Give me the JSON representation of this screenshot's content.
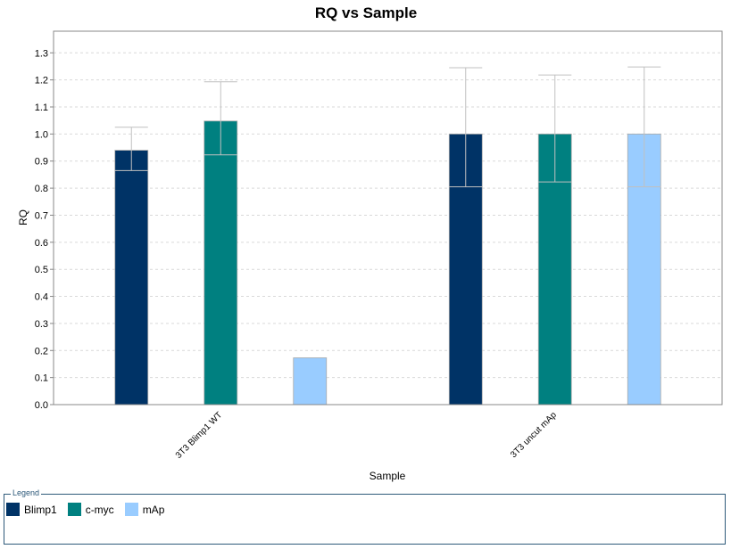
{
  "chart_data": {
    "type": "bar",
    "title": "RQ vs Sample",
    "xlabel": "Sample",
    "ylabel": "RQ",
    "categories": [
      "3T3 Blimp1 WT",
      "3T3 uncut mAp"
    ],
    "ylim": [
      0,
      1.38
    ],
    "yticks": [
      0.0,
      0.1,
      0.2,
      0.3,
      0.4,
      0.5,
      0.6,
      0.7,
      0.8,
      0.9,
      1.0,
      1.1,
      1.2,
      1.3
    ],
    "grid": true,
    "legend_position": "bottom",
    "legend_title": "Legend",
    "series": [
      {
        "name": "Blimp1",
        "color": "#003366",
        "values": [
          0.94,
          1.0
        ],
        "err_low": [
          0.865,
          0.805
        ],
        "err_high": [
          1.025,
          1.245
        ]
      },
      {
        "name": "c-myc",
        "color": "#008080",
        "values": [
          1.048,
          1.0
        ],
        "err_low": [
          0.923,
          0.823
        ],
        "err_high": [
          1.193,
          1.218
        ]
      },
      {
        "name": "mAp",
        "color": "#99ccff",
        "values": [
          0.173,
          1.0
        ],
        "err_low": [
          null,
          0.805
        ],
        "err_high": [
          null,
          1.248
        ]
      }
    ]
  }
}
